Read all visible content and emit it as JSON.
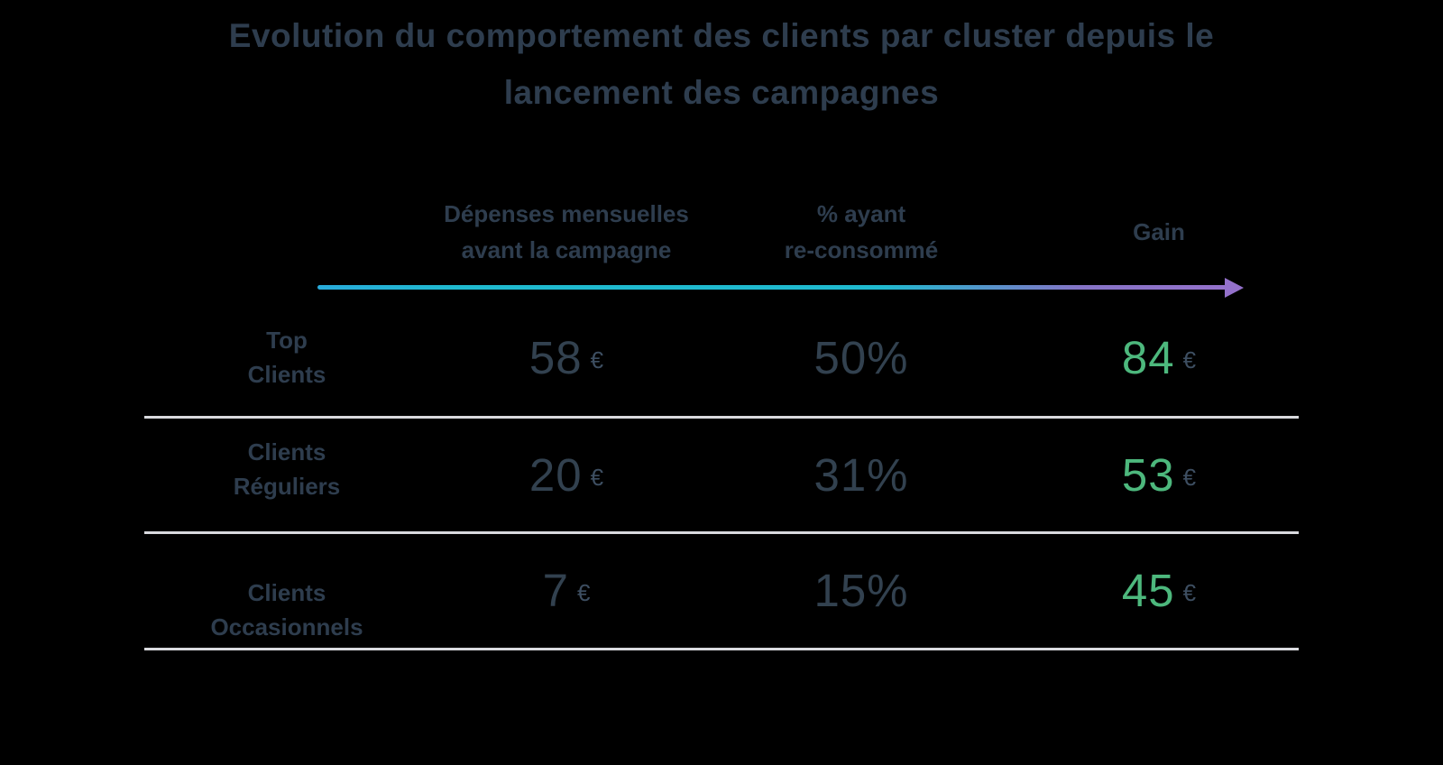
{
  "title": {
    "lines": [
      "Evolution du comportement des clients par cluster depuis le",
      "lancement des campagnes"
    ]
  },
  "colors": {
    "background": "#000000",
    "text_slate": "#2e3d4e",
    "value_slate": "#32414f",
    "gain_green": "#4db87d",
    "arrow_teal": "#1fb9cf",
    "arrow_purple": "#9471cb",
    "divider_gray": "#d9dade"
  },
  "table": {
    "currency_symbol": "€",
    "columns": [
      {
        "label_lines": [
          "Dépenses mensuelles",
          "avant la campagne"
        ]
      },
      {
        "label_lines": [
          "% ayant",
          "re-consommé"
        ]
      },
      {
        "label_lines": [
          "Gain"
        ]
      }
    ],
    "rows": [
      {
        "label_lines": [
          "Top",
          "Clients"
        ],
        "spend": "58",
        "pct": "50%",
        "gain": "84"
      },
      {
        "label_lines": [
          "Clients",
          "Réguliers"
        ],
        "spend": "20",
        "pct": "31%",
        "gain": "53"
      },
      {
        "label_lines": [
          "Clients",
          "Occasionnels"
        ],
        "spend": "7",
        "pct": "15%",
        "gain": "45"
      }
    ]
  },
  "chart_data": {
    "type": "table",
    "title": "Evolution du comportement des clients par cluster depuis le lancement des campagnes",
    "columns": [
      "Cluster",
      "Dépenses mensuelles avant la campagne",
      "% ayant re-consommé",
      "Gain"
    ],
    "rows": [
      {
        "cluster": "Top Clients",
        "depenses_avant_eur": 58,
        "pct_reconsomme": 50,
        "gain_eur": 84
      },
      {
        "cluster": "Clients Réguliers",
        "depenses_avant_eur": 20,
        "pct_reconsomme": 31,
        "gain_eur": 53
      },
      {
        "cluster": "Clients Occasionnels",
        "depenses_avant_eur": 7,
        "pct_reconsomme": 15,
        "gain_eur": 45
      }
    ],
    "layout": {
      "header_arrow": "gradient teal-to-purple pointing right",
      "gain_values_color": "green",
      "row_dividers": "light gray horizontal lines"
    }
  }
}
